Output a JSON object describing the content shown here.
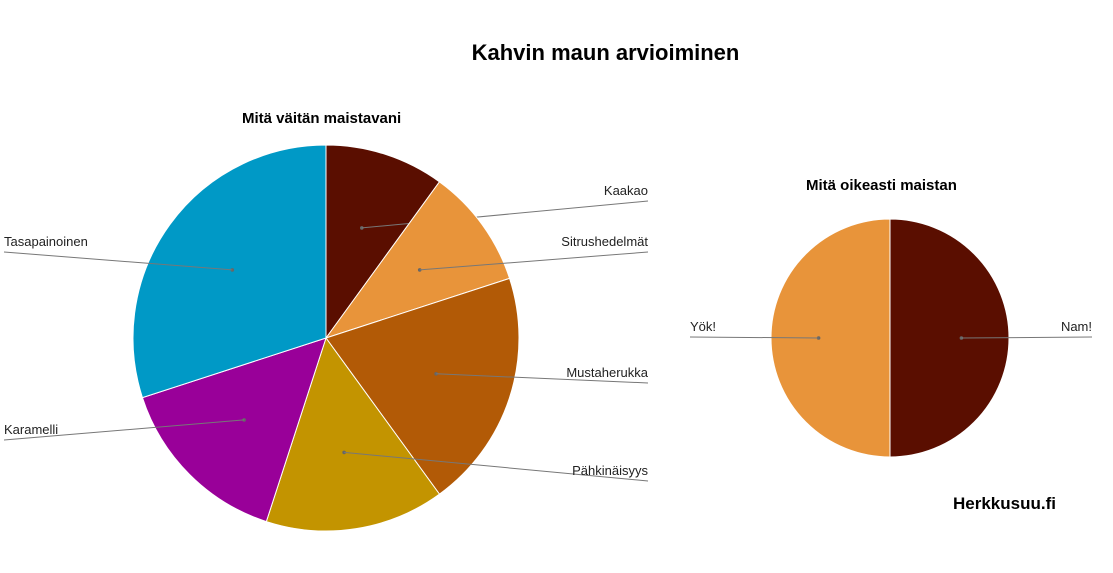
{
  "title": "Kahvin maun arvioiminen",
  "brand": "Herkkusuu.fi",
  "chart_data": [
    {
      "type": "pie",
      "title": "Mitä väitän maistavani",
      "start_angle_deg": 0,
      "direction": "clockwise",
      "slices": [
        {
          "label": "Kaakao",
          "value": 10,
          "color": "#5a0e00"
        },
        {
          "label": "Sitrushedelmät",
          "value": 10,
          "color": "#e8943a"
        },
        {
          "label": "Mustaherukka",
          "value": 20,
          "color": "#b25a06"
        },
        {
          "label": "Pähkinäisyys",
          "value": 15,
          "color": "#c39400"
        },
        {
          "label": "Karamelli",
          "value": 15,
          "color": "#990099"
        },
        {
          "label": "Tasapainoinen",
          "value": 30,
          "color": "#0099c6"
        }
      ]
    },
    {
      "type": "pie",
      "title": "Mitä oikeasti maistan",
      "start_angle_deg": 0,
      "direction": "clockwise",
      "slices": [
        {
          "label": "Nam!",
          "value": 50,
          "color": "#5a0e00"
        },
        {
          "label": "Yök!",
          "value": 50,
          "color": "#e8943a"
        }
      ]
    }
  ]
}
